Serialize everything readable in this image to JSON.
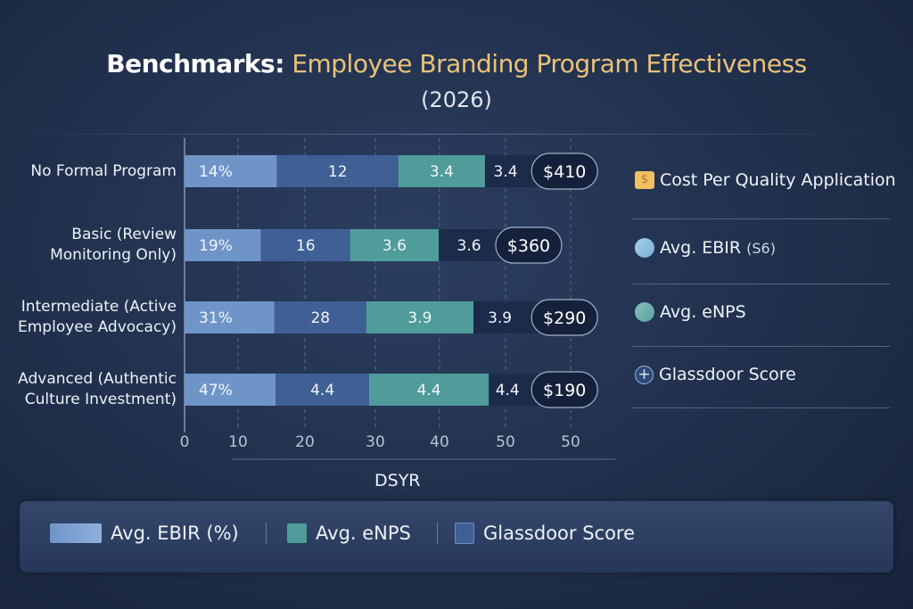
{
  "chart_data": {
    "type": "bar",
    "orientation": "horizontal",
    "stacked": true,
    "title_prefix": "Benchmarks:",
    "title_main": "Employee Branding Program Effectiveness",
    "subtitle": "(2026)",
    "xlabel": "DSYR",
    "x_tick_labels": [
      "0",
      "10",
      "20",
      "30",
      "40",
      "50",
      "50"
    ],
    "xlim": [
      0,
      60
    ],
    "grid": "vertical dashed",
    "categories": [
      "No Formal Program",
      "Basic (Review Monitoring Only)",
      "Intermediate (Active Employee Advocacy)",
      "Advanced (Authentic Culture Investment)"
    ],
    "category_lines": [
      [
        "No Formal Program"
      ],
      [
        "Basic (Review",
        "Monitoring Only)"
      ],
      [
        "Intermediate (Active",
        "Employee Advocacy)"
      ],
      [
        "Advanced (Authentic",
        "Culture Investment)"
      ]
    ],
    "rows": [
      {
        "labels": [
          "14%",
          "12",
          "3.4",
          "3.4"
        ],
        "segment_ends": [
          14.4,
          33.3,
          46.8,
          56
        ],
        "cost": "$410"
      },
      {
        "labels": [
          "19%",
          "16",
          "3.6",
          "3.6"
        ],
        "segment_ends": [
          11.9,
          25.8,
          39.6,
          51.8
        ],
        "cost": "$360"
      },
      {
        "labels": [
          "31%",
          "28",
          "3.9",
          "3.9"
        ],
        "segment_ends": [
          14.0,
          28.3,
          45.0,
          56
        ],
        "cost": "$290"
      },
      {
        "labels": [
          "47%",
          "4.4",
          "4.4",
          "4.4"
        ],
        "segment_ends": [
          14.2,
          28.75,
          47.4,
          56
        ],
        "cost": "$190"
      }
    ],
    "segment_colors": [
      "#6f95c8",
      "#3f5f95",
      "#4f9c9a",
      "#1c2b4a"
    ],
    "legend_right": [
      {
        "label": "Cost Per Quality Application",
        "icon": "dollar-badge-icon",
        "color": "#f0c060"
      },
      {
        "label": "Avg. EBIR",
        "suffix": "(S6)",
        "icon": "circle-icon",
        "color": "#8fc0e0"
      },
      {
        "label": "Avg. eNPS",
        "icon": "circle-icon",
        "color": "#6fb0aa"
      },
      {
        "label": "Glassdoor Score",
        "icon": "plus-circle-icon",
        "color": "#3f5f95"
      }
    ],
    "legend_bottom": [
      {
        "label": "Avg. EBIR (%)",
        "color": "#6f95c8"
      },
      {
        "label": "Avg. eNPS",
        "color": "#4f9c9a"
      },
      {
        "label": "Glassdoor Score",
        "color": "#3f5f95"
      }
    ]
  }
}
